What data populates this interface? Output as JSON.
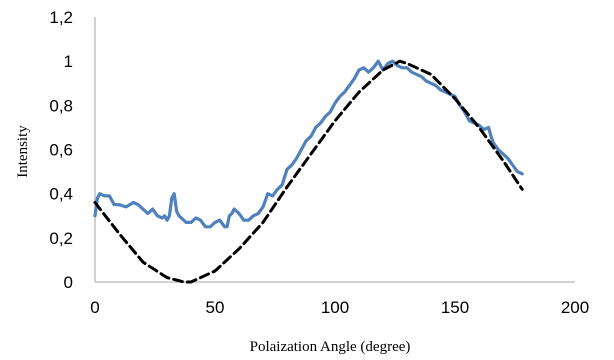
{
  "chart_data": {
    "type": "line",
    "xlabel": "Polaization Angle (degree)",
    "ylabel": "Intensity",
    "xlim": [
      0,
      200
    ],
    "ylim": [
      0,
      1.2
    ],
    "x_ticks": [
      0,
      50,
      100,
      150,
      200
    ],
    "x_tick_labels": [
      "0",
      "50",
      "100",
      "150",
      "200"
    ],
    "y_ticks": [
      0,
      0.2,
      0.4,
      0.6,
      0.8,
      1.0,
      1.2
    ],
    "y_tick_labels": [
      "0",
      "0,2",
      "0,4",
      "0,6",
      "0,8",
      "1",
      "1,2"
    ],
    "grid": false,
    "legend": false,
    "series": [
      {
        "style": "solid",
        "color": "#4f81bd",
        "x": [
          0,
          1,
          2,
          4,
          6,
          8,
          10,
          13,
          16,
          18,
          20,
          22,
          24,
          26,
          28,
          29,
          30,
          31,
          32,
          33,
          34,
          35,
          36,
          38,
          40,
          42,
          44,
          46,
          48,
          50,
          52,
          54,
          55,
          56,
          57,
          58,
          60,
          62,
          64,
          66,
          68,
          70,
          72,
          74,
          76,
          78,
          80,
          82,
          84,
          86,
          88,
          90,
          92,
          94,
          96,
          98,
          100,
          102,
          104,
          106,
          108,
          110,
          112,
          114,
          116,
          118,
          120,
          122,
          124,
          126,
          128,
          130,
          132,
          134,
          136,
          138,
          140,
          142,
          144,
          146,
          148,
          150,
          152,
          154,
          156,
          158,
          160,
          162,
          164,
          165,
          166,
          168,
          170,
          172,
          174,
          176,
          178
        ],
        "y": [
          0.3,
          0.38,
          0.4,
          0.39,
          0.39,
          0.35,
          0.35,
          0.34,
          0.36,
          0.35,
          0.33,
          0.31,
          0.33,
          0.3,
          0.29,
          0.3,
          0.28,
          0.3,
          0.38,
          0.4,
          0.32,
          0.3,
          0.29,
          0.27,
          0.27,
          0.29,
          0.28,
          0.25,
          0.25,
          0.27,
          0.28,
          0.25,
          0.25,
          0.3,
          0.31,
          0.33,
          0.31,
          0.28,
          0.28,
          0.3,
          0.31,
          0.34,
          0.4,
          0.39,
          0.42,
          0.44,
          0.51,
          0.53,
          0.56,
          0.6,
          0.64,
          0.66,
          0.7,
          0.72,
          0.75,
          0.77,
          0.81,
          0.84,
          0.86,
          0.89,
          0.92,
          0.96,
          0.97,
          0.95,
          0.97,
          1.0,
          0.96,
          0.99,
          1.0,
          0.98,
          0.97,
          0.97,
          0.95,
          0.94,
          0.93,
          0.91,
          0.9,
          0.89,
          0.87,
          0.86,
          0.85,
          0.84,
          0.8,
          0.77,
          0.73,
          0.72,
          0.71,
          0.69,
          0.7,
          0.66,
          0.63,
          0.6,
          0.58,
          0.56,
          0.53,
          0.5,
          0.49
        ]
      },
      {
        "style": "dashed",
        "color": "#000000",
        "x": [
          0,
          10,
          20,
          30,
          37,
          40,
          50,
          60,
          70,
          80,
          90,
          100,
          110,
          120,
          127,
          130,
          140,
          150,
          160,
          170,
          178
        ],
        "y": [
          0.36,
          0.22,
          0.09,
          0.02,
          0.0,
          0.0,
          0.05,
          0.15,
          0.27,
          0.43,
          0.58,
          0.73,
          0.86,
          0.96,
          1.0,
          0.99,
          0.94,
          0.83,
          0.7,
          0.55,
          0.42
        ]
      }
    ]
  }
}
